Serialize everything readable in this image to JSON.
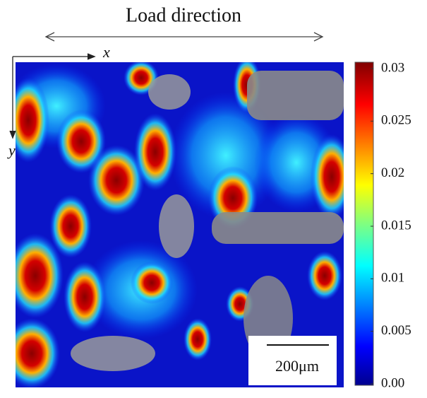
{
  "header": {
    "title": "Load direction"
  },
  "axes": {
    "x": "x",
    "y": "y"
  },
  "scale_bar": "200μm",
  "colorbar": {
    "lim": [
      0,
      0.03
    ],
    "ticks": [
      {
        "value": 0,
        "label": "0.00"
      },
      0.005,
      0.01,
      0.015,
      0.02,
      0.025,
      0.03
    ]
  }
}
